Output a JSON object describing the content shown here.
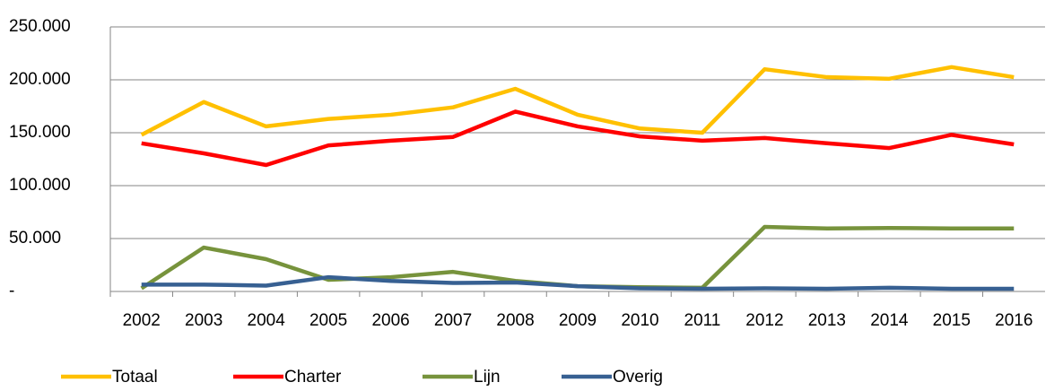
{
  "chart_data": {
    "type": "line",
    "categories": [
      "2002",
      "2003",
      "2004",
      "2005",
      "2006",
      "2007",
      "2008",
      "2009",
      "2010",
      "2011",
      "2012",
      "2013",
      "2014",
      "2015",
      "2016"
    ],
    "series": [
      {
        "name": "Totaal",
        "color": "#ffc000",
        "values": [
          148000,
          179000,
          156000,
          163000,
          167000,
          174000,
          191500,
          167000,
          154000,
          150000,
          210000,
          202500,
          201000,
          212000,
          202500
        ]
      },
      {
        "name": "Charter",
        "color": "#ff0000",
        "values": [
          140000,
          130500,
          119500,
          138000,
          142500,
          146000,
          170000,
          156000,
          146500,
          142500,
          145000,
          140000,
          135500,
          148000,
          139000
        ]
      },
      {
        "name": "Lijn",
        "color": "#77933c",
        "values": [
          3000,
          41500,
          30500,
          11000,
          13500,
          18500,
          10000,
          5000,
          4000,
          3500,
          61000,
          59500,
          60000,
          59500,
          59500
        ]
      },
      {
        "name": "Overig",
        "color": "#376092",
        "values": [
          6500,
          6500,
          5500,
          13500,
          10000,
          8000,
          8500,
          5000,
          3000,
          2500,
          3000,
          2500,
          3500,
          2500,
          2500
        ]
      }
    ],
    "ylim": [
      0,
      250000
    ],
    "yticks": [
      {
        "value": 0,
        "label": "-"
      },
      {
        "value": 50000,
        "label": "50.000"
      },
      {
        "value": 100000,
        "label": "100.000"
      },
      {
        "value": 150000,
        "label": "150.000"
      },
      {
        "value": 200000,
        "label": "200.000"
      },
      {
        "value": 250000,
        "label": "250.000"
      }
    ],
    "grid": true,
    "legend": "bottom"
  }
}
